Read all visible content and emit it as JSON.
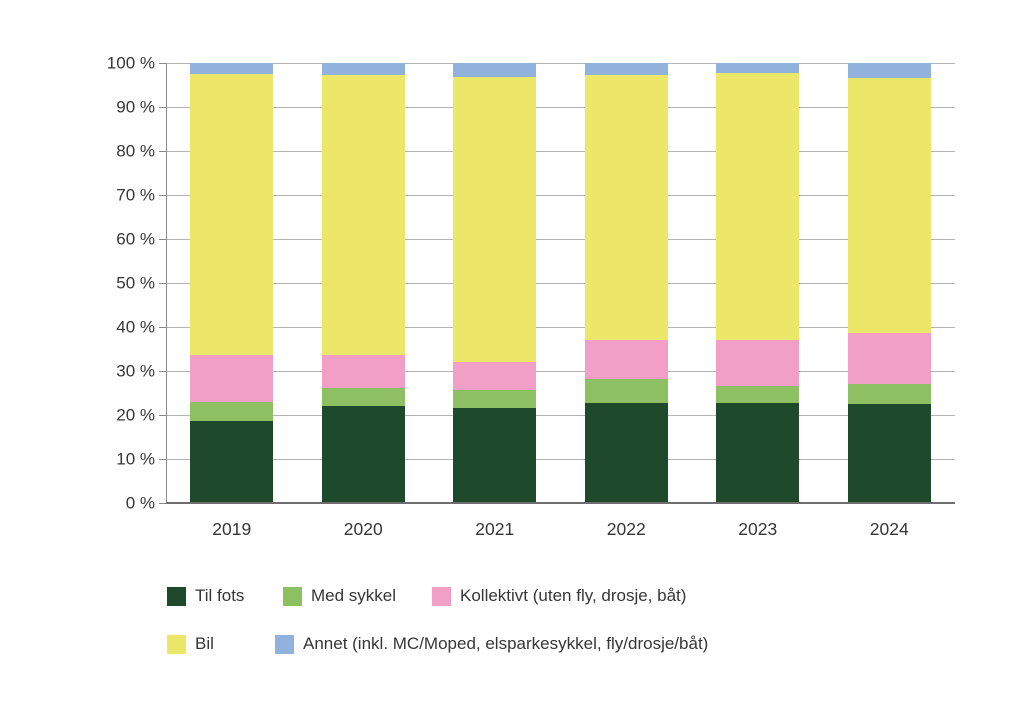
{
  "chart_data": {
    "type": "bar",
    "variant": "stacked-100",
    "title": "",
    "xlabel": "",
    "ylabel": "",
    "categories": [
      "2019",
      "2020",
      "2021",
      "2022",
      "2023",
      "2024"
    ],
    "series": [
      {
        "name": "Til fots",
        "color": "#1e4a2b",
        "values": [
          18.7,
          22.1,
          21.6,
          22.8,
          22.7,
          22.4
        ]
      },
      {
        "name": "Med sykkel",
        "color": "#8dc063",
        "values": [
          4.3,
          4.0,
          4.1,
          5.4,
          3.9,
          4.6
        ]
      },
      {
        "name": "Kollektivt (uten fly, drosje, båt)",
        "color": "#f19fc6",
        "values": [
          10.7,
          7.6,
          6.3,
          8.9,
          10.5,
          11.6
        ]
      },
      {
        "name": "Bil",
        "color": "#ece669",
        "values": [
          63.8,
          63.6,
          64.9,
          60.1,
          60.7,
          58.0
        ]
      },
      {
        "name": "Annet (inkl. MC/Moped, elsparkesykkel, fly/drosje/båt)",
        "color": "#90b2dd",
        "values": [
          2.5,
          2.7,
          3.1,
          2.8,
          2.2,
          3.4
        ]
      }
    ],
    "ylim": [
      0,
      100
    ],
    "yticks": [
      "0 %",
      "10 %",
      "20 %",
      "30 %",
      "40 %",
      "50 %",
      "60 %",
      "70 %",
      "80 %",
      "90 %",
      "100 %"
    ],
    "grid": true,
    "legend_position": "bottom",
    "legend_rows": [
      [
        "Til fots",
        "Med sykkel",
        "Kollektivt (uten fly, drosje, båt)"
      ],
      [
        "Bil",
        "Annet (inkl. MC/Moped, elsparkesykkel, fly/drosje/båt)"
      ]
    ]
  },
  "style": {
    "grid_color": "#b5b5b5",
    "axis_color": "#8a8a8a",
    "baseline_color": "#6e6e6e",
    "text_color": "#363636",
    "background": "#ffffff"
  }
}
